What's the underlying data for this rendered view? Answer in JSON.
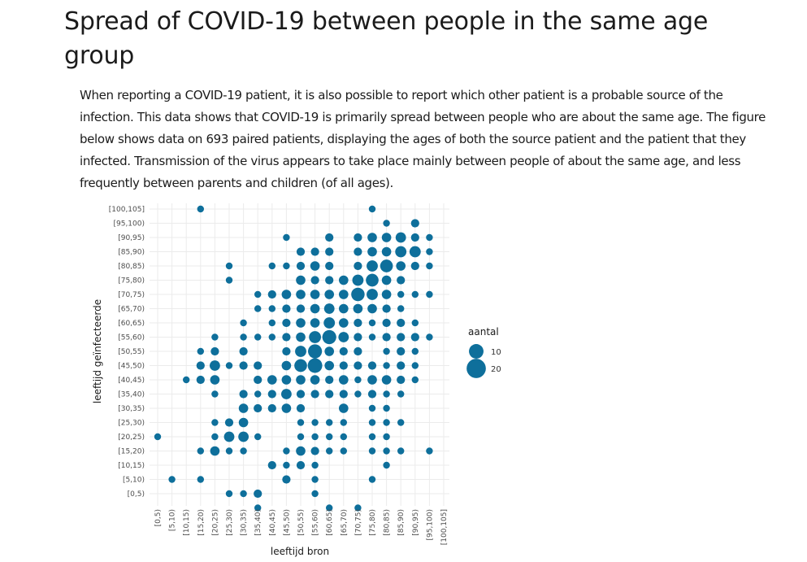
{
  "page": {
    "title": "Spread of COVID-19 between people in the same age group",
    "intro": "When reporting a COVID-19 patient, it is also possible to report which other patient is a probable source of the infection. This data shows that COVID-19 is primarily spread between people who are about the same age. The figure below shows data on 693 paired patients, displaying the ages of both the source patient and the patient that they infected. Transmission of the virus appears to take place mainly between people of about the same age, and less frequently between parents and children (of all ages)."
  },
  "colors": {
    "point": "#0e6f9b",
    "grid": "#ebebeb"
  },
  "chart_data": {
    "type": "scatter",
    "subtype": "bubble",
    "xlabel": "leeftijd bron",
    "ylabel": "leeftijd geïnfecteerde",
    "categories": [
      "[0,5)",
      "[5,10)",
      "[10,15)",
      "[15,20)",
      "[20,25)",
      "[25,30)",
      "[30,35)",
      "[35,40)",
      "[40,45)",
      "[45,50)",
      "[50,55)",
      "[55,60)",
      "[60,65)",
      "[65,70)",
      "[70,75)",
      "[75,80)",
      "[80,85)",
      "[85,90)",
      "[90,95)",
      "[95,100)",
      "[100,105]"
    ],
    "legend": {
      "title": "aantal",
      "entries": [
        {
          "label": "10",
          "value": 10
        },
        {
          "label": "20",
          "value": 20
        }
      ]
    },
    "points_note": "each point is [source age index, infected age index, count]",
    "points": [
      [
        3,
        20,
        1
      ],
      [
        15,
        20,
        1
      ],
      [
        16,
        19,
        1
      ],
      [
        18,
        19,
        2
      ],
      [
        9,
        18,
        1
      ],
      [
        12,
        18,
        2
      ],
      [
        14,
        18,
        2
      ],
      [
        15,
        18,
        3
      ],
      [
        16,
        18,
        3
      ],
      [
        17,
        18,
        4
      ],
      [
        18,
        18,
        2
      ],
      [
        19,
        18,
        1
      ],
      [
        10,
        17,
        2
      ],
      [
        11,
        17,
        2
      ],
      [
        12,
        17,
        2
      ],
      [
        14,
        17,
        2
      ],
      [
        15,
        17,
        3
      ],
      [
        16,
        17,
        3
      ],
      [
        17,
        17,
        5
      ],
      [
        18,
        17,
        5
      ],
      [
        19,
        17,
        1
      ],
      [
        5,
        16,
        1
      ],
      [
        8,
        16,
        1
      ],
      [
        9,
        16,
        1
      ],
      [
        10,
        16,
        2
      ],
      [
        11,
        16,
        3
      ],
      [
        12,
        16,
        2
      ],
      [
        14,
        16,
        2
      ],
      [
        15,
        16,
        5
      ],
      [
        16,
        16,
        7
      ],
      [
        17,
        16,
        3
      ],
      [
        18,
        16,
        2
      ],
      [
        19,
        16,
        1
      ],
      [
        5,
        15,
        1
      ],
      [
        10,
        15,
        3
      ],
      [
        11,
        15,
        2
      ],
      [
        12,
        15,
        2
      ],
      [
        13,
        15,
        3
      ],
      [
        14,
        15,
        5
      ],
      [
        15,
        15,
        7
      ],
      [
        16,
        15,
        3
      ],
      [
        17,
        15,
        2
      ],
      [
        7,
        14,
        1
      ],
      [
        8,
        14,
        2
      ],
      [
        9,
        14,
        3
      ],
      [
        10,
        14,
        3
      ],
      [
        11,
        14,
        3
      ],
      [
        12,
        14,
        3
      ],
      [
        13,
        14,
        3
      ],
      [
        14,
        14,
        8
      ],
      [
        15,
        14,
        5
      ],
      [
        16,
        14,
        3
      ],
      [
        17,
        14,
        1
      ],
      [
        18,
        14,
        1
      ],
      [
        19,
        14,
        1
      ],
      [
        7,
        13,
        1
      ],
      [
        8,
        13,
        1
      ],
      [
        9,
        13,
        2
      ],
      [
        10,
        13,
        2
      ],
      [
        11,
        13,
        3
      ],
      [
        12,
        13,
        4
      ],
      [
        13,
        13,
        3
      ],
      [
        14,
        13,
        3
      ],
      [
        15,
        13,
        3
      ],
      [
        16,
        13,
        2
      ],
      [
        17,
        13,
        1
      ],
      [
        6,
        12,
        1
      ],
      [
        8,
        12,
        1
      ],
      [
        9,
        12,
        2
      ],
      [
        10,
        12,
        3
      ],
      [
        11,
        12,
        3
      ],
      [
        12,
        12,
        5
      ],
      [
        13,
        12,
        3
      ],
      [
        14,
        12,
        2
      ],
      [
        15,
        12,
        1
      ],
      [
        16,
        12,
        2
      ],
      [
        17,
        12,
        2
      ],
      [
        18,
        12,
        1
      ],
      [
        4,
        11,
        1
      ],
      [
        6,
        11,
        1
      ],
      [
        7,
        11,
        1
      ],
      [
        8,
        11,
        1
      ],
      [
        9,
        11,
        2
      ],
      [
        10,
        11,
        3
      ],
      [
        11,
        11,
        6
      ],
      [
        12,
        11,
        9
      ],
      [
        13,
        11,
        4
      ],
      [
        14,
        11,
        2
      ],
      [
        15,
        11,
        1
      ],
      [
        16,
        11,
        2
      ],
      [
        17,
        11,
        2
      ],
      [
        18,
        11,
        2
      ],
      [
        19,
        11,
        1
      ],
      [
        3,
        10,
        1
      ],
      [
        4,
        10,
        2
      ],
      [
        6,
        10,
        2
      ],
      [
        9,
        10,
        2
      ],
      [
        10,
        10,
        5
      ],
      [
        11,
        10,
        9
      ],
      [
        12,
        10,
        3
      ],
      [
        13,
        10,
        2
      ],
      [
        14,
        10,
        2
      ],
      [
        16,
        10,
        1
      ],
      [
        17,
        10,
        2
      ],
      [
        18,
        10,
        1
      ],
      [
        3,
        9,
        2
      ],
      [
        4,
        9,
        4
      ],
      [
        5,
        9,
        1
      ],
      [
        6,
        9,
        2
      ],
      [
        7,
        9,
        2
      ],
      [
        9,
        9,
        3
      ],
      [
        10,
        9,
        7
      ],
      [
        11,
        9,
        10
      ],
      [
        12,
        9,
        3
      ],
      [
        13,
        9,
        2
      ],
      [
        14,
        9,
        2
      ],
      [
        15,
        9,
        2
      ],
      [
        16,
        9,
        1
      ],
      [
        17,
        9,
        2
      ],
      [
        18,
        9,
        1
      ],
      [
        2,
        8,
        1
      ],
      [
        3,
        8,
        2
      ],
      [
        4,
        8,
        3
      ],
      [
        7,
        8,
        2
      ],
      [
        8,
        8,
        3
      ],
      [
        9,
        8,
        3
      ],
      [
        10,
        8,
        3
      ],
      [
        11,
        8,
        3
      ],
      [
        12,
        8,
        2
      ],
      [
        13,
        8,
        3
      ],
      [
        14,
        8,
        1
      ],
      [
        15,
        8,
        3
      ],
      [
        16,
        8,
        3
      ],
      [
        17,
        8,
        2
      ],
      [
        18,
        8,
        1
      ],
      [
        4,
        7,
        1
      ],
      [
        6,
        7,
        2
      ],
      [
        7,
        7,
        1
      ],
      [
        8,
        7,
        2
      ],
      [
        9,
        7,
        4
      ],
      [
        10,
        7,
        2
      ],
      [
        11,
        7,
        2
      ],
      [
        12,
        7,
        2
      ],
      [
        13,
        7,
        2
      ],
      [
        14,
        7,
        1
      ],
      [
        15,
        7,
        2
      ],
      [
        16,
        7,
        1
      ],
      [
        17,
        7,
        1
      ],
      [
        6,
        6,
        3
      ],
      [
        7,
        6,
        2
      ],
      [
        8,
        6,
        2
      ],
      [
        9,
        6,
        3
      ],
      [
        10,
        6,
        2
      ],
      [
        13,
        6,
        3
      ],
      [
        15,
        6,
        1
      ],
      [
        16,
        6,
        1
      ],
      [
        4,
        5,
        1
      ],
      [
        5,
        5,
        2
      ],
      [
        6,
        5,
        3
      ],
      [
        10,
        5,
        1
      ],
      [
        11,
        5,
        1
      ],
      [
        12,
        5,
        1
      ],
      [
        13,
        5,
        1
      ],
      [
        15,
        5,
        1
      ],
      [
        16,
        5,
        1
      ],
      [
        17,
        5,
        1
      ],
      [
        0,
        4,
        1
      ],
      [
        4,
        4,
        1
      ],
      [
        5,
        4,
        4
      ],
      [
        6,
        4,
        4
      ],
      [
        7,
        4,
        1
      ],
      [
        10,
        4,
        1
      ],
      [
        11,
        4,
        1
      ],
      [
        12,
        4,
        1
      ],
      [
        13,
        4,
        1
      ],
      [
        15,
        4,
        1
      ],
      [
        16,
        4,
        1
      ],
      [
        3,
        3,
        1
      ],
      [
        4,
        3,
        3
      ],
      [
        5,
        3,
        1
      ],
      [
        6,
        3,
        1
      ],
      [
        9,
        3,
        1
      ],
      [
        10,
        3,
        3
      ],
      [
        11,
        3,
        2
      ],
      [
        12,
        3,
        1
      ],
      [
        13,
        3,
        1
      ],
      [
        15,
        3,
        1
      ],
      [
        16,
        3,
        1
      ],
      [
        17,
        3,
        1
      ],
      [
        19,
        3,
        1
      ],
      [
        8,
        2,
        2
      ],
      [
        9,
        2,
        1
      ],
      [
        10,
        2,
        2
      ],
      [
        11,
        2,
        1
      ],
      [
        16,
        2,
        1
      ],
      [
        1,
        1,
        1
      ],
      [
        3,
        1,
        1
      ],
      [
        9,
        1,
        2
      ],
      [
        11,
        1,
        1
      ],
      [
        15,
        1,
        1
      ],
      [
        5,
        0,
        1
      ],
      [
        6,
        0,
        1
      ],
      [
        7,
        0,
        2
      ],
      [
        11,
        0,
        1
      ],
      [
        7,
        -1,
        1
      ],
      [
        12,
        -1,
        1
      ],
      [
        14,
        -1,
        1
      ]
    ]
  }
}
